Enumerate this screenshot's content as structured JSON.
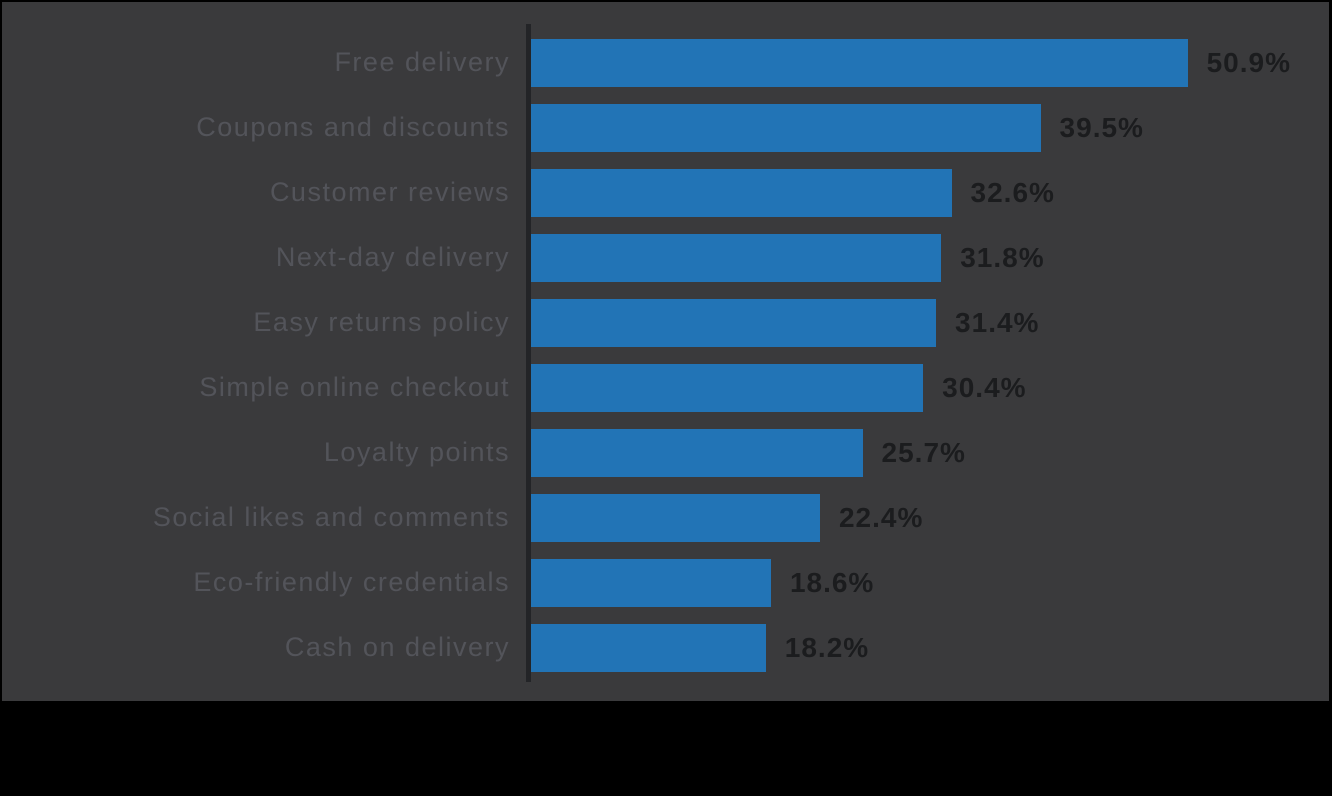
{
  "chart_data": {
    "type": "bar",
    "orientation": "horizontal",
    "title": "",
    "xlabel": "",
    "ylabel": "",
    "grid": false,
    "legend_position": null,
    "xlim": [
      0,
      55
    ],
    "categories": [
      "Free delivery",
      "Coupons and discounts",
      "Customer reviews",
      "Next-day delivery",
      "Easy returns policy",
      "Simple online checkout",
      "Loyalty points",
      "Social likes and comments",
      "Eco-friendly credentials",
      "Cash on delivery"
    ],
    "values": [
      50.9,
      39.5,
      32.6,
      31.8,
      31.4,
      30.4,
      25.7,
      22.4,
      18.6,
      18.2
    ],
    "value_labels": [
      "50.9%",
      "39.5%",
      "32.6%",
      "31.8%",
      "31.4%",
      "30.4%",
      "25.7%",
      "22.4%",
      "18.6%",
      "18.2%"
    ],
    "colors": {
      "bar_color": "#2274b6",
      "panel_bg": "#3a3a3c",
      "outer_bg": "#000000",
      "category_label_color": "#53545a",
      "value_label_color": "#1b1c1e",
      "axis_line_color": "#232427"
    }
  }
}
